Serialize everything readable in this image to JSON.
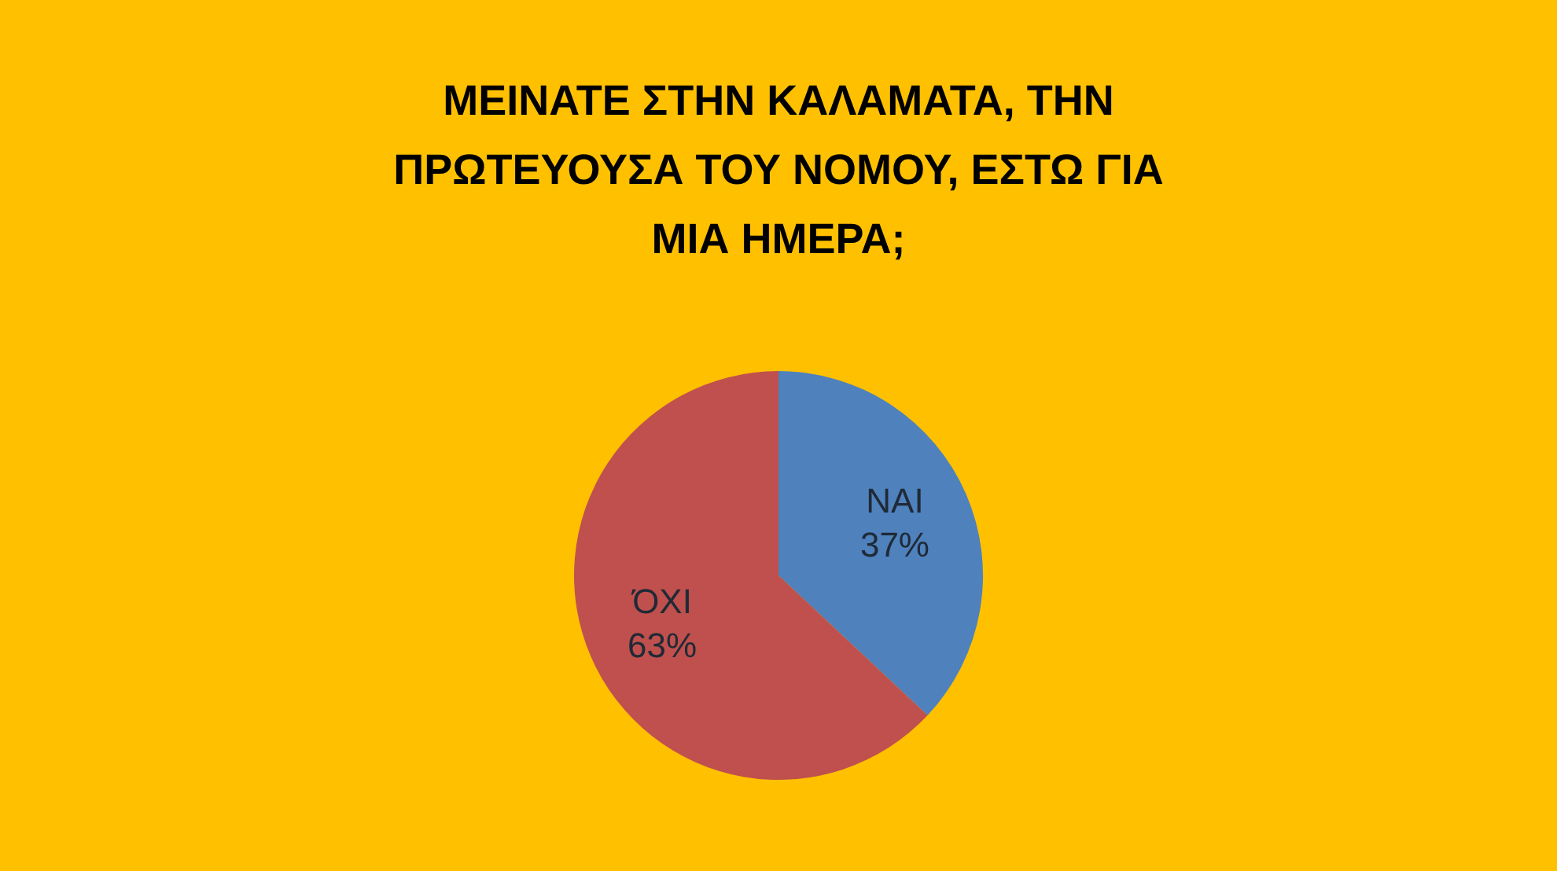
{
  "chart_data": {
    "type": "pie",
    "title": "ΜΕΙΝΑΤΕ ΣΤΗΝ ΚΑΛΑΜΑΤΑ, ΤΗΝ ΠΡΩΤΕΥΟΥΣΑ ΤΟΥ ΝΟΜΟΥ, ΕΣΤΩ ΓΙΑ ΜΙΑ ΗΜΕΡΑ;",
    "categories": [
      "ΝΑΙ",
      "ΌΧΙ"
    ],
    "values": [
      37,
      63
    ],
    "colors": [
      "#4f81bd",
      "#c0504d"
    ],
    "value_labels": [
      "37%",
      "63%"
    ],
    "legend": false
  }
}
